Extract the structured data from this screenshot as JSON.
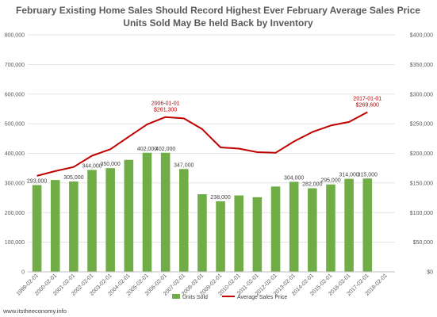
{
  "chart_data": {
    "type": "bar",
    "title_line1": "February Existing Home Sales Should  Record Highest Ever February  Average Sales Price",
    "title_line2": "Units Sold May Be held Back by Inventory",
    "categories": [
      "1999-02-01",
      "2000-02-01",
      "2001-02-01",
      "2002-02-01",
      "2003-02-01",
      "2004-02-01",
      "2005-02-01",
      "2006-02-01",
      "2007-02-01",
      "2008-02-01",
      "2009-02-01",
      "2010-02-01",
      "2011-02-01",
      "2012-02-01",
      "2013-02-01",
      "2014-02-01",
      "2015-02-01",
      "2016-02-01",
      "2017-02-01",
      "2018-02-01"
    ],
    "series": [
      {
        "name": "Units Sold",
        "type": "bar",
        "axis": "left",
        "color": "#70ad47",
        "values": [
          293000,
          310000,
          305000,
          344000,
          350000,
          378000,
          402000,
          402000,
          347000,
          262000,
          238000,
          258000,
          252000,
          288000,
          304000,
          282000,
          295000,
          314000,
          315000,
          null
        ]
      },
      {
        "name": "Average Sales Price",
        "type": "line",
        "axis": "right",
        "color": "#c00000",
        "values": [
          162000,
          170000,
          177000,
          196000,
          207000,
          228000,
          249000,
          261300,
          259000,
          241000,
          210000,
          208000,
          202000,
          201000,
          220000,
          236000,
          247000,
          253000,
          269600,
          null
        ]
      }
    ],
    "y_left": {
      "min": 0,
      "max": 800000,
      "ticks": [
        "0",
        "100,000",
        "200,000",
        "300,000",
        "400,000",
        "500,000",
        "600,000",
        "700,000",
        "800,000"
      ]
    },
    "y_right": {
      "min": 0,
      "max": 400000,
      "ticks": [
        "$0",
        "$50,000",
        "$100,000",
        "$150,000",
        "$200,000",
        "$250,000",
        "$300,000",
        "$350,000",
        "$400,000"
      ]
    },
    "bar_labels": {
      "0": "293,000",
      "2": "305,000",
      "3": "344,000",
      "4": "350,000",
      "6": "402,000",
      "7": "402,000",
      "8": "347,000",
      "10": "238,000",
      "14": "304,000",
      "15": "282,000",
      "16": "295,000",
      "17": "314,000",
      "18": "315,000"
    },
    "annotations": [
      {
        "index": 7,
        "date": "2006-01-01",
        "value": "$261,300"
      },
      {
        "index": 18,
        "date": "2017-01-01",
        "value": "$269,600"
      }
    ],
    "grid": true,
    "legend": {
      "position": "bottom"
    }
  },
  "footer": {
    "text": "www.itstheeconomy.info"
  }
}
